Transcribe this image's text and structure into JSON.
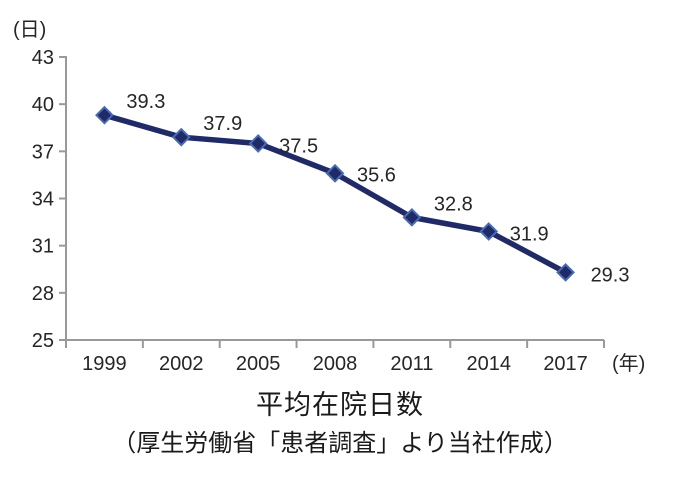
{
  "chart_data": {
    "type": "line",
    "x": [
      "1999",
      "2002",
      "2005",
      "2008",
      "2011",
      "2014",
      "2017"
    ],
    "series": [
      {
        "name": "平均在院日数",
        "values": [
          39.3,
          37.9,
          37.5,
          35.6,
          32.8,
          31.9,
          29.3
        ]
      }
    ],
    "data_labels": [
      "39.3",
      "37.9",
      "37.5",
      "35.6",
      "32.8",
      "31.9",
      "29.3"
    ],
    "title": "平均在院日数",
    "subtitle": "（厚生労働省「患者調査」より当社作成）",
    "y_unit_label": "(日)",
    "x_unit_label": "(年)",
    "ylim": [
      25,
      43
    ],
    "yticks": [
      25,
      28,
      31,
      34,
      37,
      40,
      43
    ],
    "xlabel": "",
    "ylabel": "",
    "grid": false,
    "legend_position": "none",
    "marker": "diamond",
    "colors": {
      "line": "#1f2a66",
      "marker_fill": "#1f2a66",
      "marker_edge": "#4a6ab0",
      "axis": "#999999",
      "tick_text": "#262626",
      "label_text": "#1a1a1a"
    }
  }
}
